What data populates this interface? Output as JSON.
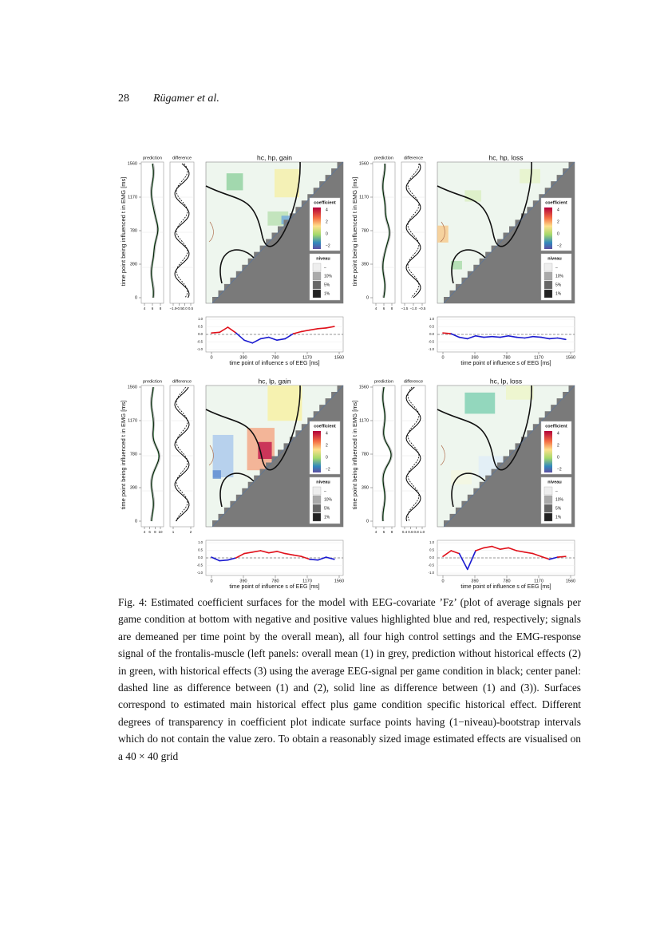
{
  "header": {
    "page_number": "28",
    "authors": "Rügamer et al."
  },
  "figure": {
    "panels": [
      {
        "title": "hc, hp, gain",
        "prediction_label": "prediction",
        "difference_label": "difference",
        "y_axis_label": "time point being influenced t in EMG [ms]",
        "y_ticks": [
          "1560",
          "1170",
          "780",
          "390",
          "0"
        ],
        "prediction_ticks": [
          "4",
          "6",
          "8"
        ],
        "difference_ticks": [
          "−1.0",
          "−0.5",
          "0.0",
          "0.5"
        ],
        "legend": {
          "coefficient_title": "coefficient",
          "coefficient_ticks": [
            "4",
            "2",
            "0",
            "−2"
          ],
          "niveau_title": "niveau",
          "niveau_labels": [
            "–",
            "10%",
            "5%",
            "1%"
          ]
        },
        "signal": {
          "y_ticks": [
            "1.0",
            "0.5",
            "0.0",
            "-0.5",
            "-1.0"
          ],
          "x_ticks": [
            "0",
            "390",
            "780",
            "1170",
            "1560"
          ],
          "x_label": "time point of influence s of EEG [ms]",
          "x": [
            0,
            100,
            200,
            300,
            400,
            500,
            600,
            700,
            800,
            900,
            1000,
            1100,
            1200,
            1300,
            1400,
            1500
          ],
          "values": [
            0.1,
            0.15,
            0.5,
            0.1,
            -0.4,
            -0.6,
            -0.3,
            -0.2,
            -0.4,
            -0.3,
            0.05,
            0.2,
            0.3,
            0.4,
            0.45,
            0.55
          ]
        }
      },
      {
        "title": "hc, hp, loss",
        "prediction_label": "prediction",
        "difference_label": "difference",
        "y_axis_label": "time point being influenced t in EMG [ms]",
        "y_ticks": [
          "1560",
          "1170",
          "780",
          "390",
          "0"
        ],
        "prediction_ticks": [
          "4",
          "6",
          "8"
        ],
        "difference_ticks": [
          "−1.5",
          "−1.0",
          "−0.5"
        ],
        "legend": {
          "coefficient_title": "coefficient",
          "coefficient_ticks": [
            "4",
            "2",
            "0",
            "−2"
          ],
          "niveau_title": "niveau",
          "niveau_labels": [
            "–",
            "10%",
            "5%",
            "1%"
          ]
        },
        "signal": {
          "y_ticks": [
            "1.0",
            "0.5",
            "0.0",
            "-0.5",
            "-1.0"
          ],
          "x_ticks": [
            "0",
            "390",
            "780",
            "1170",
            "1560"
          ],
          "x_label": "time point of influence s of EEG [ms]",
          "x": [
            0,
            100,
            200,
            300,
            400,
            500,
            600,
            700,
            800,
            900,
            1000,
            1100,
            1200,
            1300,
            1400,
            1500
          ],
          "values": [
            0.1,
            0.05,
            -0.2,
            -0.3,
            -0.1,
            -0.2,
            -0.15,
            -0.2,
            -0.1,
            -0.2,
            -0.25,
            -0.15,
            -0.2,
            -0.3,
            -0.25,
            -0.35
          ]
        }
      },
      {
        "title": "hc, lp, gain",
        "prediction_label": "prediction",
        "difference_label": "difference",
        "y_axis_label": "time point being influenced t in EMG [ms]",
        "y_ticks": [
          "1560",
          "1170",
          "780",
          "390",
          "0"
        ],
        "prediction_ticks": [
          "4",
          "6",
          "8",
          "10"
        ],
        "difference_ticks": [
          "1",
          "2"
        ],
        "legend": {
          "coefficient_title": "coefficient",
          "coefficient_ticks": [
            "4",
            "2",
            "0",
            "−2"
          ],
          "niveau_title": "niveau",
          "niveau_labels": [
            "–",
            "10%",
            "5%",
            "1%"
          ]
        },
        "signal": {
          "y_ticks": [
            "1.0",
            "0.5",
            "0.0",
            "-0.5",
            "-1.0"
          ],
          "x_ticks": [
            "0",
            "390",
            "780",
            "1170",
            "1560"
          ],
          "x_label": "time point of influence s of EEG [ms]",
          "x": [
            0,
            100,
            200,
            300,
            400,
            500,
            600,
            700,
            800,
            900,
            1000,
            1100,
            1200,
            1300,
            1400,
            1500
          ],
          "values": [
            0.05,
            -0.2,
            -0.15,
            0.0,
            0.3,
            0.4,
            0.5,
            0.35,
            0.45,
            0.3,
            0.2,
            0.1,
            -0.1,
            -0.15,
            0.05,
            -0.1
          ]
        }
      },
      {
        "title": "hc, lp, loss",
        "prediction_label": "prediction",
        "difference_label": "difference",
        "y_axis_label": "time point being influenced t in EMG [ms]",
        "y_ticks": [
          "1560",
          "1170",
          "780",
          "390",
          "0"
        ],
        "prediction_ticks": [
          "4",
          "6",
          "8"
        ],
        "difference_ticks": [
          "0.4",
          "0.6",
          "0.8",
          "1.0"
        ],
        "legend": {
          "coefficient_title": "coefficient",
          "coefficient_ticks": [
            "4",
            "2",
            "0",
            "−2"
          ],
          "niveau_title": "niveau",
          "niveau_labels": [
            "–",
            "10%",
            "5%",
            "1%"
          ]
        },
        "signal": {
          "y_ticks": [
            "1.0",
            "0.5",
            "0.0",
            "-0.5",
            "-1.0"
          ],
          "x_ticks": [
            "0",
            "390",
            "780",
            "1170",
            "1560"
          ],
          "x_label": "time point of influence s of EEG [ms]",
          "x": [
            0,
            100,
            200,
            300,
            400,
            500,
            600,
            700,
            800,
            900,
            1000,
            1100,
            1200,
            1300,
            1400,
            1500
          ],
          "values": [
            0.1,
            0.5,
            0.3,
            -0.8,
            0.5,
            0.7,
            0.8,
            0.6,
            0.7,
            0.5,
            0.4,
            0.3,
            0.1,
            -0.1,
            0.05,
            0.1
          ]
        }
      }
    ]
  },
  "caption": "Fig. 4: Estimated coefficient surfaces for the model with EEG-covariate ’Fz’ (plot of average signals per game condition at bottom with negative and positive values highlighted blue and red, respectively; signals are demeaned per time point by the overall mean), all four high control settings and the EMG-response signal of the frontalis-muscle (left panels: overall mean (1) in grey, prediction without historical effects (2) in green, with historical effects (3) using the average EEG-signal per game condition in black; center panel: dashed line as difference between (1) and (2), solid line as difference between (1) and (3)). Surfaces correspond to estimated main historical effect plus game condition specific historical effect. Different degrees of transparency in coefficient plot indicate surface points having (1−niveau)-bootstrap intervals which do not contain the value zero. To obtain a reasonably sized image estimated effects are visualised on a 40 × 40 grid"
}
